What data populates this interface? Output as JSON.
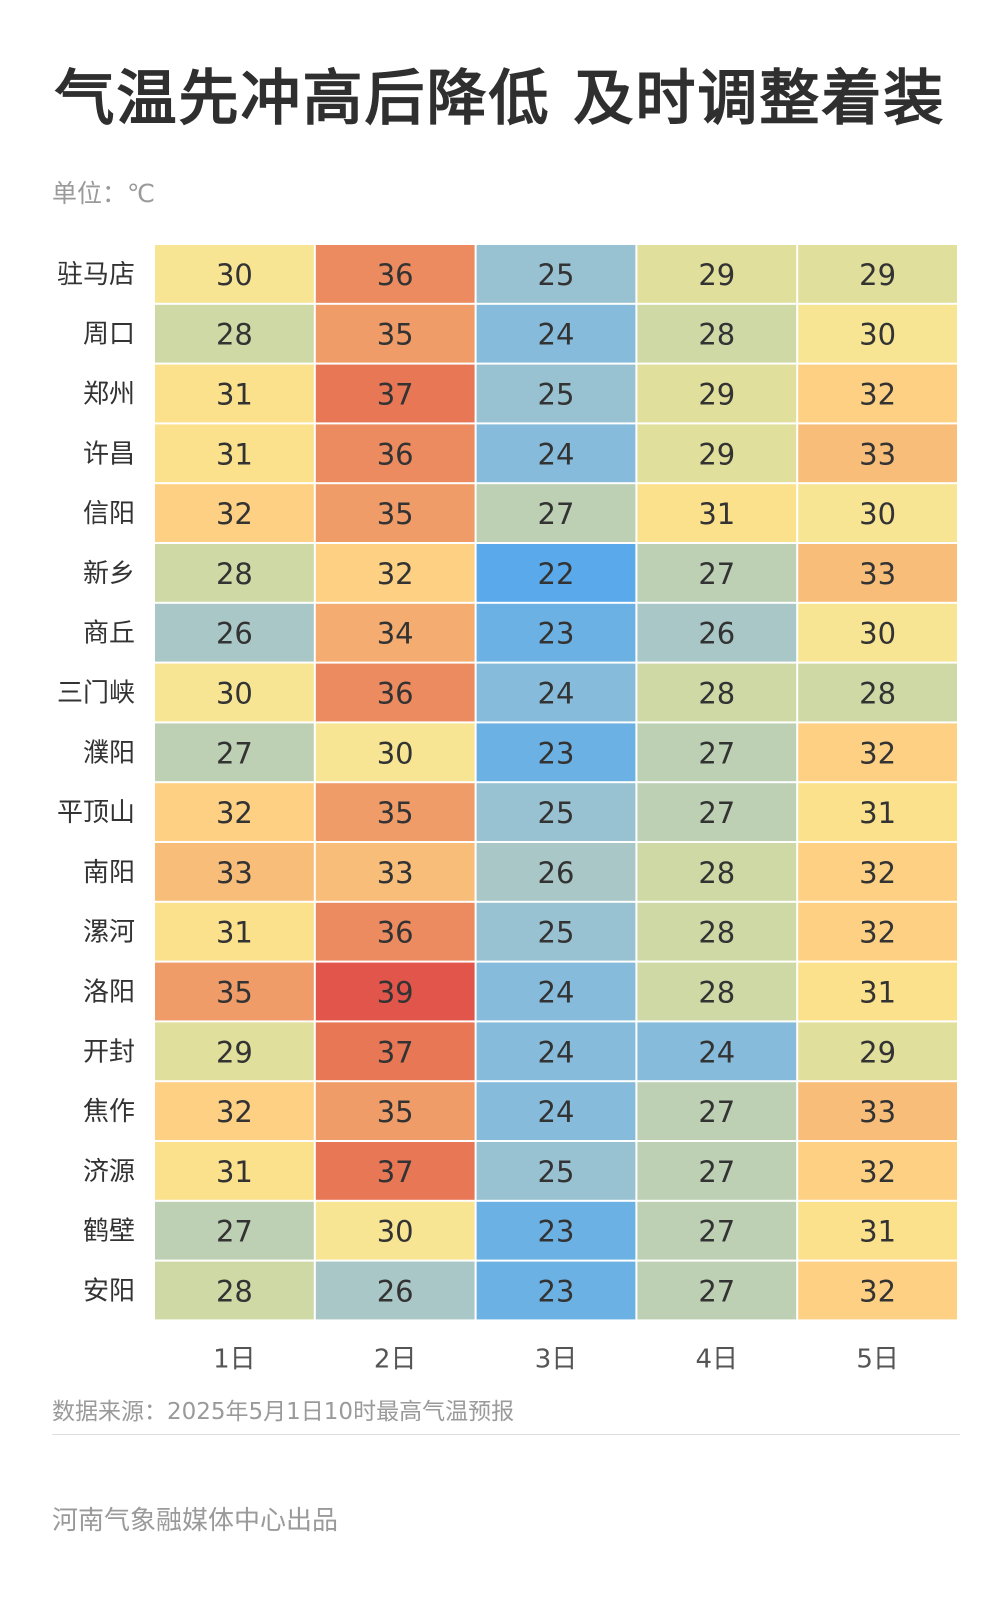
{
  "header": {
    "title": "气温先冲高后降低 及时调整着装",
    "unit": "单位：℃"
  },
  "chart_data": {
    "type": "heatmap",
    "title": "气温先冲高后降低 及时调整着装",
    "unit": "℃",
    "rows": [
      "驻马店",
      "周口",
      "郑州",
      "许昌",
      "信阳",
      "新乡",
      "商丘",
      "三门峡",
      "濮阳",
      "平顶山",
      "南阳",
      "漯河",
      "洛阳",
      "开封",
      "焦作",
      "济源",
      "鹤壁",
      "安阳"
    ],
    "columns": [
      "1日",
      "2日",
      "3日",
      "4日",
      "5日"
    ],
    "values": [
      [
        30,
        36,
        25,
        29,
        29
      ],
      [
        28,
        35,
        24,
        28,
        30
      ],
      [
        31,
        37,
        25,
        29,
        32
      ],
      [
        31,
        36,
        24,
        29,
        33
      ],
      [
        32,
        35,
        27,
        31,
        30
      ],
      [
        28,
        32,
        22,
        27,
        33
      ],
      [
        26,
        34,
        23,
        26,
        30
      ],
      [
        30,
        36,
        24,
        28,
        28
      ],
      [
        27,
        30,
        23,
        27,
        32
      ],
      [
        32,
        35,
        25,
        27,
        31
      ],
      [
        33,
        33,
        26,
        28,
        32
      ],
      [
        31,
        36,
        25,
        28,
        32
      ],
      [
        35,
        39,
        24,
        28,
        31
      ],
      [
        29,
        37,
        24,
        24,
        29
      ],
      [
        32,
        35,
        24,
        27,
        33
      ],
      [
        31,
        37,
        25,
        27,
        32
      ],
      [
        27,
        30,
        23,
        27,
        31
      ],
      [
        28,
        26,
        23,
        27,
        32
      ]
    ],
    "color_scale": {
      "22": "#5aa9ea",
      "23": "#6cb1e3",
      "24": "#86bbdb",
      "25": "#98c2d2",
      "26": "#a9c7c6",
      "27": "#bdd0b4",
      "28": "#cfd9a6",
      "29": "#e1df9c",
      "30": "#f7e594",
      "31": "#fce18c",
      "32": "#fdd083",
      "33": "#f8bd79",
      "34": "#f4ac71",
      "35": "#f09c68",
      "36": "#ec8b5f",
      "37": "#e87756",
      "39": "#e2554b"
    }
  },
  "footer": {
    "source": "数据来源：2025年5月1日10时最高气温预报",
    "credit": "河南气象融媒体中心出品"
  }
}
